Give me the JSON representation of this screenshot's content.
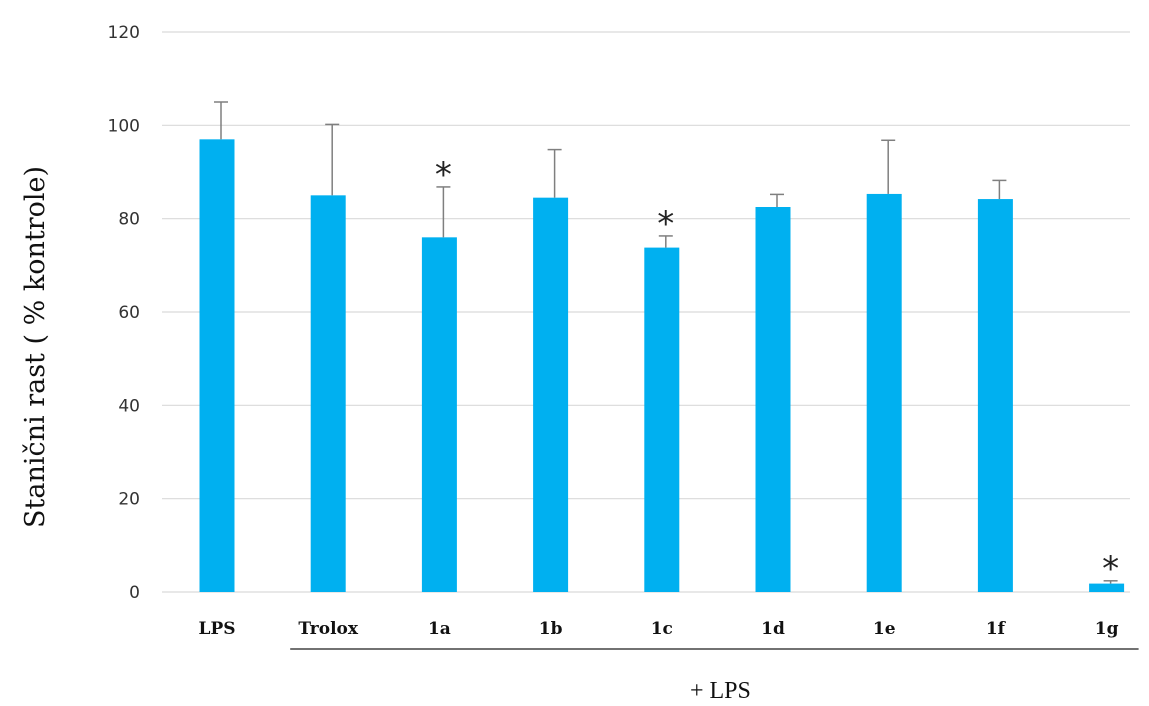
{
  "chart_data": {
    "type": "bar",
    "title": "",
    "ylabel": "Stanični rast ( % kontrole)",
    "xlabel": "",
    "group_label": "+ LPS",
    "group_members": [
      "Trolox",
      "1a",
      "1b",
      "1c",
      "1d",
      "1e",
      "1f",
      "1g"
    ],
    "categories": [
      "LPS",
      "Trolox",
      "1a",
      "1b",
      "1c",
      "1d",
      "1e",
      "1f",
      "1g"
    ],
    "values": [
      97,
      85,
      76,
      84.5,
      73.8,
      82.5,
      85.3,
      84.2,
      1.8
    ],
    "errors": [
      8,
      15.2,
      10.8,
      10.3,
      2.5,
      2.7,
      11.5,
      4,
      0.6
    ],
    "significance": [
      "",
      "",
      "*",
      "",
      "*",
      "",
      "",
      "",
      "*"
    ],
    "ylim": [
      0,
      120
    ],
    "yticks": [
      0,
      20,
      40,
      60,
      80,
      100,
      120
    ],
    "grid": true,
    "bar_color": "#00B0F0",
    "error_bar_color": "#7F7F7F"
  }
}
